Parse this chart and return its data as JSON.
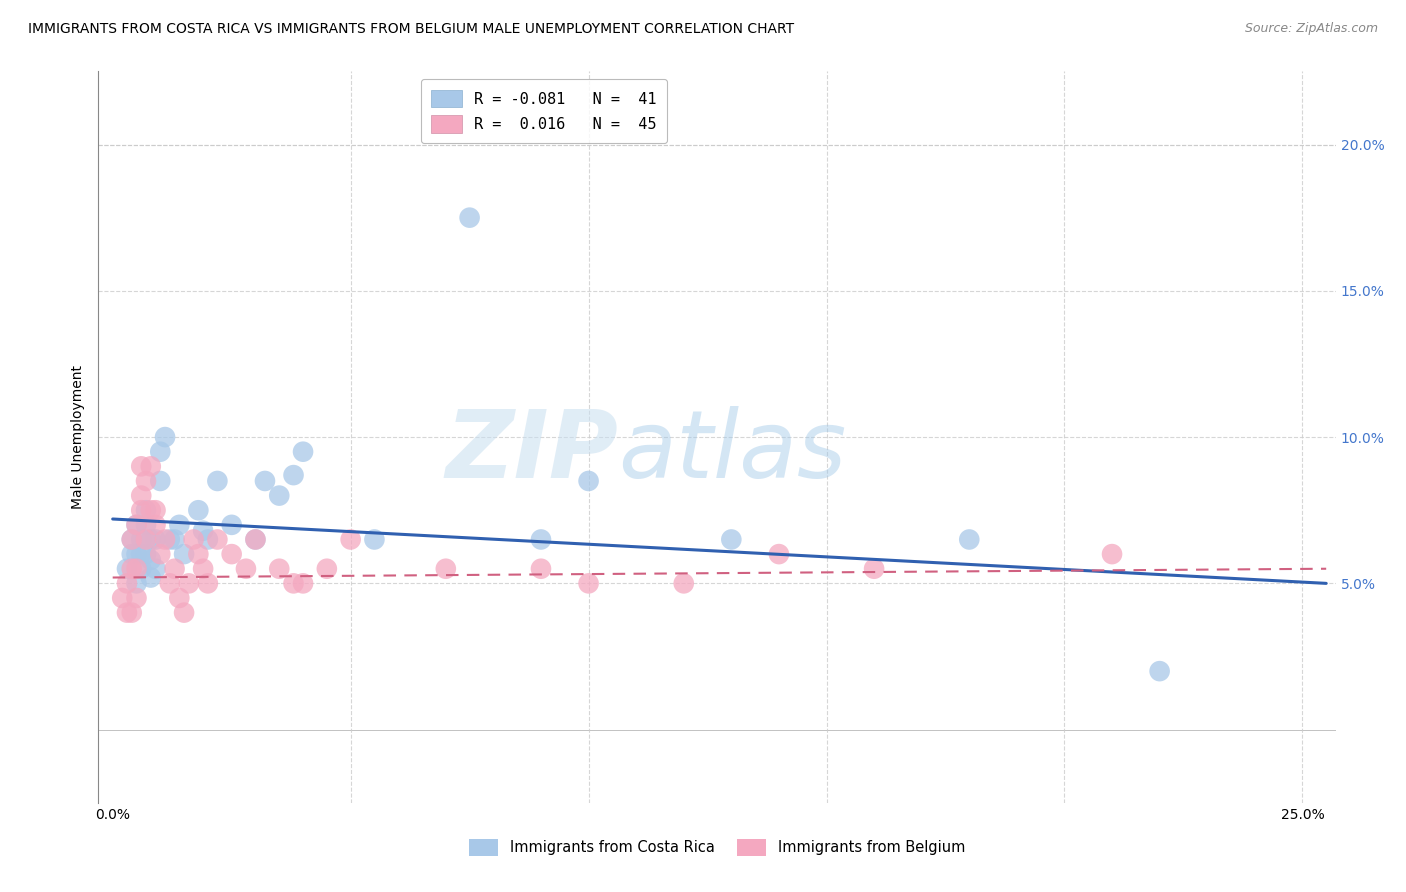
{
  "title": "IMMIGRANTS FROM COSTA RICA VS IMMIGRANTS FROM BELGIUM MALE UNEMPLOYMENT CORRELATION CHART",
  "source": "Source: ZipAtlas.com",
  "ylabel": "Male Unemployment",
  "xlim": [
    -0.003,
    0.257
  ],
  "ylim": [
    -0.025,
    0.225
  ],
  "xticks": [
    0.0,
    0.05,
    0.1,
    0.15,
    0.2,
    0.25
  ],
  "xticklabels": [
    "0.0%",
    "",
    "",
    "",
    "",
    "25.0%"
  ],
  "yticks_right": [
    0.05,
    0.1,
    0.15,
    0.2
  ],
  "yticklabels_right": [
    "5.0%",
    "10.0%",
    "15.0%",
    "20.0%"
  ],
  "legend_title_blue": "R = -0.081   N =  41",
  "legend_title_pink": "R =  0.016   N =  45",
  "watermark_zip": "ZIP",
  "watermark_atlas": "atlas",
  "blue_color": "#a8c8e8",
  "pink_color": "#f4a8c0",
  "blue_line_color": "#3060b0",
  "pink_line_color": "#d06080",
  "grid_color": "#cccccc",
  "bg_color": "#ffffff",
  "blue_line_start_y": 0.072,
  "blue_line_end_y": 0.05,
  "pink_line_start_y": 0.052,
  "pink_line_end_y": 0.055,
  "cr_x": [
    0.003,
    0.004,
    0.004,
    0.005,
    0.005,
    0.005,
    0.006,
    0.006,
    0.006,
    0.007,
    0.007,
    0.007,
    0.008,
    0.008,
    0.008,
    0.009,
    0.009,
    0.01,
    0.01,
    0.011,
    0.012,
    0.013,
    0.014,
    0.015,
    0.018,
    0.019,
    0.02,
    0.022,
    0.025,
    0.03,
    0.032,
    0.035,
    0.038,
    0.04,
    0.055,
    0.075,
    0.09,
    0.1,
    0.13,
    0.22,
    0.18
  ],
  "cr_y": [
    0.055,
    0.06,
    0.065,
    0.07,
    0.06,
    0.05,
    0.065,
    0.06,
    0.055,
    0.07,
    0.075,
    0.06,
    0.065,
    0.058,
    0.052,
    0.065,
    0.055,
    0.085,
    0.095,
    0.1,
    0.065,
    0.065,
    0.07,
    0.06,
    0.075,
    0.068,
    0.065,
    0.085,
    0.07,
    0.065,
    0.085,
    0.08,
    0.087,
    0.095,
    0.065,
    0.175,
    0.065,
    0.085,
    0.065,
    0.02,
    0.065
  ],
  "be_x": [
    0.002,
    0.003,
    0.003,
    0.004,
    0.004,
    0.004,
    0.005,
    0.005,
    0.005,
    0.006,
    0.006,
    0.006,
    0.007,
    0.007,
    0.008,
    0.008,
    0.009,
    0.009,
    0.01,
    0.011,
    0.012,
    0.013,
    0.014,
    0.015,
    0.016,
    0.017,
    0.018,
    0.019,
    0.02,
    0.022,
    0.025,
    0.028,
    0.03,
    0.035,
    0.038,
    0.04,
    0.045,
    0.05,
    0.07,
    0.09,
    0.1,
    0.12,
    0.14,
    0.16,
    0.21
  ],
  "be_y": [
    0.045,
    0.05,
    0.04,
    0.055,
    0.065,
    0.04,
    0.07,
    0.055,
    0.045,
    0.08,
    0.09,
    0.075,
    0.085,
    0.065,
    0.075,
    0.09,
    0.07,
    0.075,
    0.06,
    0.065,
    0.05,
    0.055,
    0.045,
    0.04,
    0.05,
    0.065,
    0.06,
    0.055,
    0.05,
    0.065,
    0.06,
    0.055,
    0.065,
    0.055,
    0.05,
    0.05,
    0.055,
    0.065,
    0.055,
    0.055,
    0.05,
    0.05,
    0.06,
    0.055,
    0.06
  ]
}
